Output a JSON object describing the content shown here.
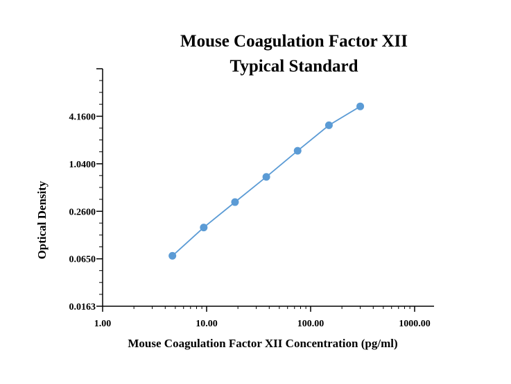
{
  "chart_data": {
    "type": "scatter",
    "title": "Mouse Coagulation Factor XII",
    "subtitle": "Typical Standard",
    "xlabel": "Mouse Coagulation Factor XII Concentration (pg/ml)",
    "ylabel": "Optical Density",
    "xscale": "log",
    "yscale": "log",
    "xlim": [
      1,
      1000
    ],
    "ylim": [
      0.0163,
      16.64
    ],
    "x_ticks": [
      1,
      10,
      100,
      1000
    ],
    "x_tick_labels": [
      "1.00",
      "10.00",
      "100.00",
      "1000.00"
    ],
    "y_ticks": [
      0.0163,
      0.065,
      0.26,
      1.04,
      4.16
    ],
    "y_tick_labels": [
      "0.0163",
      "0.0650",
      "0.2600",
      "1.0400",
      "4.1600"
    ],
    "grid": false,
    "series": [
      {
        "x": [
          4.69,
          9.38,
          18.75,
          37.5,
          75,
          150,
          300
        ],
        "y": [
          0.071,
          0.162,
          0.34,
          0.71,
          1.52,
          3.2,
          5.55
        ],
        "color": "#5B9BD5",
        "line": true,
        "markers": true
      }
    ]
  }
}
